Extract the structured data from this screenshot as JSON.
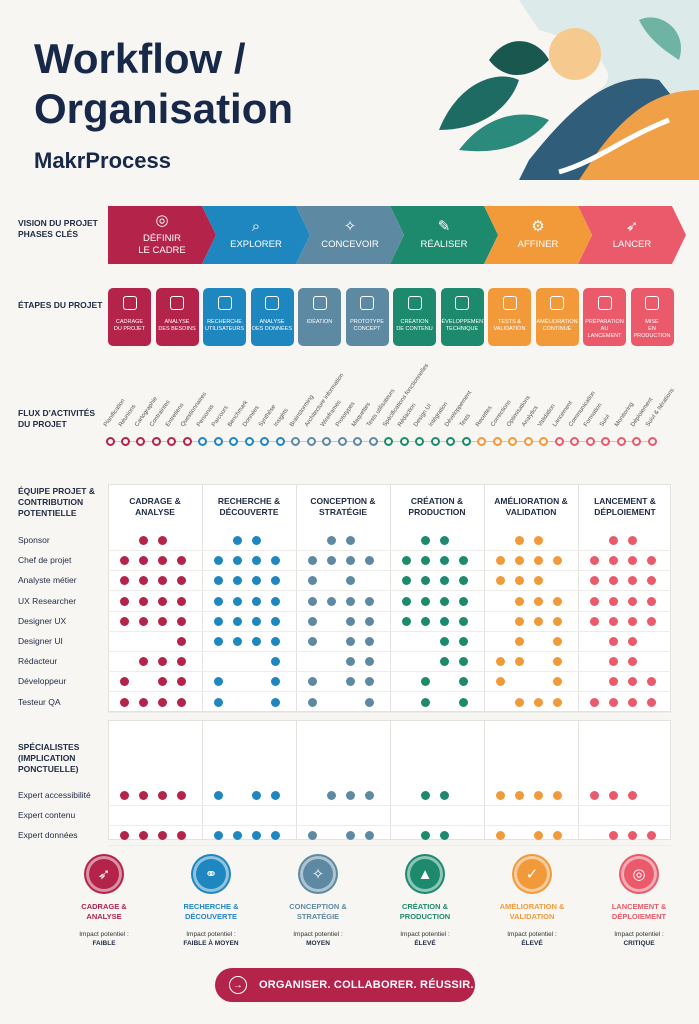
{
  "header": {
    "title_line1": "Workflow /",
    "title_line2": "Organisation",
    "subtitle": "MakrProcess"
  },
  "row_labels": {
    "vision": "VISION DU PROJET\nPHASES CLÉS",
    "etapes": "ÉTAPES DU PROJET",
    "flux": "FLUX D'ACTIVITÉS\nDU PROJET",
    "equipe": "ÉQUIPE PROJET &\nCONTRIBUTION\nPOTENTIELLE",
    "specialistes": "SPÉCIALISTES\n(IMPLICATION\nPONCTUELLE)"
  },
  "colors": {
    "crimson": "#b3234a",
    "blue": "#1f87c0",
    "slate": "#5d8aa2",
    "green": "#1d8a6e",
    "orange": "#f29a3a",
    "red": "#ea5a6a"
  },
  "phases": [
    {
      "label": "DÉFINIR\nLE CADRE",
      "icon": "target-icon",
      "glyph": "◎",
      "color": "#b3234a"
    },
    {
      "label": "EXPLORER",
      "icon": "magnifier-icon",
      "glyph": "⌕",
      "color": "#1f87c0"
    },
    {
      "label": "CONCEVOIR",
      "icon": "lightbulb-icon",
      "glyph": "✧",
      "color": "#5d8aa2"
    },
    {
      "label": "RÉALISER",
      "icon": "pencil-icon",
      "glyph": "✎",
      "color": "#1d8a6e"
    },
    {
      "label": "AFFINER",
      "icon": "gear-icon",
      "glyph": "⚙",
      "color": "#f29a3a"
    },
    {
      "label": "LANCER",
      "icon": "rocket-icon",
      "glyph": "➶",
      "color": "#ea5a6a"
    }
  ],
  "steps": [
    {
      "label": "CADRAGE\nDU PROJET",
      "icon": "clipboard-icon",
      "color": "#b3234a"
    },
    {
      "label": "ANALYSE\nDES BESOINS",
      "icon": "bar-chart-icon",
      "color": "#b3234a"
    },
    {
      "label": "RECHERCHE\nUTILISATEURS",
      "icon": "users-icon",
      "color": "#1f87c0"
    },
    {
      "label": "ANALYSE\nDES DONNÉES",
      "icon": "pie-chart-icon",
      "color": "#1f87c0"
    },
    {
      "label": "IDÉATION",
      "icon": "lightbulb-icon",
      "color": "#5d8aa2"
    },
    {
      "label": "PROTOTYPE\nCONCEPT",
      "icon": "cube-icon",
      "color": "#5d8aa2"
    },
    {
      "label": "CRÉATION\nDE CONTENU",
      "icon": "monitor-icon",
      "color": "#1d8a6e"
    },
    {
      "label": "DÉVELOPPEMENT\nTECHNIQUE",
      "icon": "code-icon",
      "color": "#1d8a6e"
    },
    {
      "label": "TESTS &\nVALIDATION",
      "icon": "checklist-icon",
      "color": "#f29a3a"
    },
    {
      "label": "AMÉLIORATION\nCONTINUE",
      "icon": "cycle-icon",
      "color": "#f29a3a"
    },
    {
      "label": "PRÉPARATION\nAU LANCEMENT",
      "icon": "megaphone-icon",
      "color": "#ea5a6a"
    },
    {
      "label": "MISE\nEN PRODUCTION",
      "icon": "rocket-icon",
      "color": "#ea5a6a"
    }
  ],
  "activities": [
    {
      "label": "Planification",
      "color": "#b3234a"
    },
    {
      "label": "Réunions",
      "color": "#b3234a"
    },
    {
      "label": "Cartographie",
      "color": "#b3234a"
    },
    {
      "label": "Contraintes",
      "color": "#b3234a"
    },
    {
      "label": "Entretiens",
      "color": "#b3234a"
    },
    {
      "label": "Questionnaires",
      "color": "#b3234a"
    },
    {
      "label": "Personas",
      "color": "#1f87c0"
    },
    {
      "label": "Parcours",
      "color": "#1f87c0"
    },
    {
      "label": "Benchmark",
      "color": "#1f87c0"
    },
    {
      "label": "Données",
      "color": "#1f87c0"
    },
    {
      "label": "Synthèse",
      "color": "#1f87c0"
    },
    {
      "label": "Insights",
      "color": "#1f87c0"
    },
    {
      "label": "Brainstorming",
      "color": "#5d8aa2"
    },
    {
      "label": "Architecture information",
      "color": "#5d8aa2"
    },
    {
      "label": "Wireframes",
      "color": "#5d8aa2"
    },
    {
      "label": "Prototypes",
      "color": "#5d8aa2"
    },
    {
      "label": "Maquettes",
      "color": "#5d8aa2"
    },
    {
      "label": "Tests utilisateurs",
      "color": "#5d8aa2"
    },
    {
      "label": "Spécifications fonctionnelles",
      "color": "#1d8a6e"
    },
    {
      "label": "Rédaction",
      "color": "#1d8a6e"
    },
    {
      "label": "Design UI",
      "color": "#1d8a6e"
    },
    {
      "label": "Intégration",
      "color": "#1d8a6e"
    },
    {
      "label": "Développement",
      "color": "#1d8a6e"
    },
    {
      "label": "Tests",
      "color": "#1d8a6e"
    },
    {
      "label": "Recettes",
      "color": "#f29a3a"
    },
    {
      "label": "Corrections",
      "color": "#f29a3a"
    },
    {
      "label": "Optimisations",
      "color": "#f29a3a"
    },
    {
      "label": "Analytics",
      "color": "#f29a3a"
    },
    {
      "label": "Validation",
      "color": "#f29a3a"
    },
    {
      "label": "Lancement",
      "color": "#ea5a6a"
    },
    {
      "label": "Communication",
      "color": "#ea5a6a"
    },
    {
      "label": "Formation",
      "color": "#ea5a6a"
    },
    {
      "label": "Suivi",
      "color": "#ea5a6a"
    },
    {
      "label": "Monitoring",
      "color": "#ea5a6a"
    },
    {
      "label": "Déploiement",
      "color": "#ea5a6a"
    },
    {
      "label": "Suivi & Itérations",
      "color": "#ea5a6a"
    }
  ],
  "columns": [
    {
      "label": "CADRAGE &\nANALYSE",
      "color": "#b3234a"
    },
    {
      "label": "RECHERCHE &\nDÉCOUVERTE",
      "color": "#1f87c0"
    },
    {
      "label": "CONCEPTION &\nSTRATÉGIE",
      "color": "#5d8aa2"
    },
    {
      "label": "CRÉATION &\nPRODUCTION",
      "color": "#1d8a6e"
    },
    {
      "label": "AMÉLIORATION &\nVALIDATION",
      "color": "#f29a3a"
    },
    {
      "label": "LANCEMENT &\nDÉPLOIEMENT",
      "color": "#ea5a6a"
    }
  ],
  "roles": [
    {
      "name": "Sponsor",
      "dots": [
        "0110",
        "0110",
        "0110",
        "0110",
        "0110",
        "0110"
      ]
    },
    {
      "name": "Chef de projet",
      "dots": [
        "1111",
        "1111",
        "1111",
        "1111",
        "1111",
        "1111"
      ]
    },
    {
      "name": "Analyste métier",
      "dots": [
        "1111",
        "1111",
        "1010",
        "1111",
        "1110",
        "1111"
      ]
    },
    {
      "name": "UX Researcher",
      "dots": [
        "1111",
        "1111",
        "1111",
        "1111",
        "0111",
        "1111"
      ]
    },
    {
      "name": "Designer UX",
      "dots": [
        "1111",
        "1111",
        "1011",
        "1111",
        "0111",
        "1111"
      ]
    },
    {
      "name": "Designer UI",
      "dots": [
        "0001",
        "1111",
        "1011",
        "0011",
        "0101",
        "0110"
      ]
    },
    {
      "name": "Rédacteur",
      "dots": [
        "0111",
        "0001",
        "0011",
        "0011",
        "1101",
        "0110"
      ]
    },
    {
      "name": "Développeur",
      "dots": [
        "1011",
        "1001",
        "1011",
        "0101",
        "1001",
        "0111"
      ]
    },
    {
      "name": "Testeur QA",
      "dots": [
        "1111",
        "1001",
        "1001",
        "0101",
        "0111",
        "1111"
      ]
    }
  ],
  "specialists": [
    {
      "name": "Expert accessibilité",
      "dots": [
        "1111",
        "1011",
        "0111",
        "0110",
        "1111",
        "1110"
      ]
    },
    {
      "name": "Expert contenu",
      "dots": [
        "0000",
        "0000",
        "0000",
        "0000",
        "0000",
        "0000"
      ]
    },
    {
      "name": "Expert données",
      "dots": [
        "1111",
        "1111",
        "1011",
        "0110",
        "1011",
        "0111"
      ]
    }
  ],
  "impacts": [
    {
      "name": "CADRAGE &\nANALYSE",
      "pot": "Impact potentiel :",
      "level": "FAIBLE",
      "icon": "rocket-icon",
      "glyph": "➶",
      "color": "#b3234a"
    },
    {
      "name": "RECHERCHE &\nDÉCOUVERTE",
      "pot": "Impact potentiel :",
      "level": "FAIBLE À MOYEN",
      "icon": "binoculars-icon",
      "glyph": "⚭",
      "color": "#1f87c0"
    },
    {
      "name": "CONCEPTION &\nSTRATÉGIE",
      "pot": "Impact potentiel :",
      "level": "MOYEN",
      "icon": "compass-icon",
      "glyph": "✧",
      "color": "#5d8aa2"
    },
    {
      "name": "CRÉATION &\nPRODUCTION",
      "pot": "Impact potentiel :",
      "level": "ÉLEVÉ",
      "icon": "growth-chart-icon",
      "glyph": "▲",
      "color": "#1d8a6e"
    },
    {
      "name": "AMÉLIORATION &\nVALIDATION",
      "pot": "Impact potentiel :",
      "level": "ÉLEVÉ",
      "icon": "badge-check-icon",
      "glyph": "✓",
      "color": "#f29a3a"
    },
    {
      "name": "LANCEMENT &\nDÉPLOIEMENT",
      "pot": "Impact potentiel :",
      "level": "CRITIQUE",
      "icon": "target-icon",
      "glyph": "◎",
      "color": "#ea5a6a"
    }
  ],
  "cta": {
    "label": "ORGANISER. COLLABORER. RÉUSSIR.",
    "icon": "arrow-right-icon",
    "glyph": "→"
  }
}
